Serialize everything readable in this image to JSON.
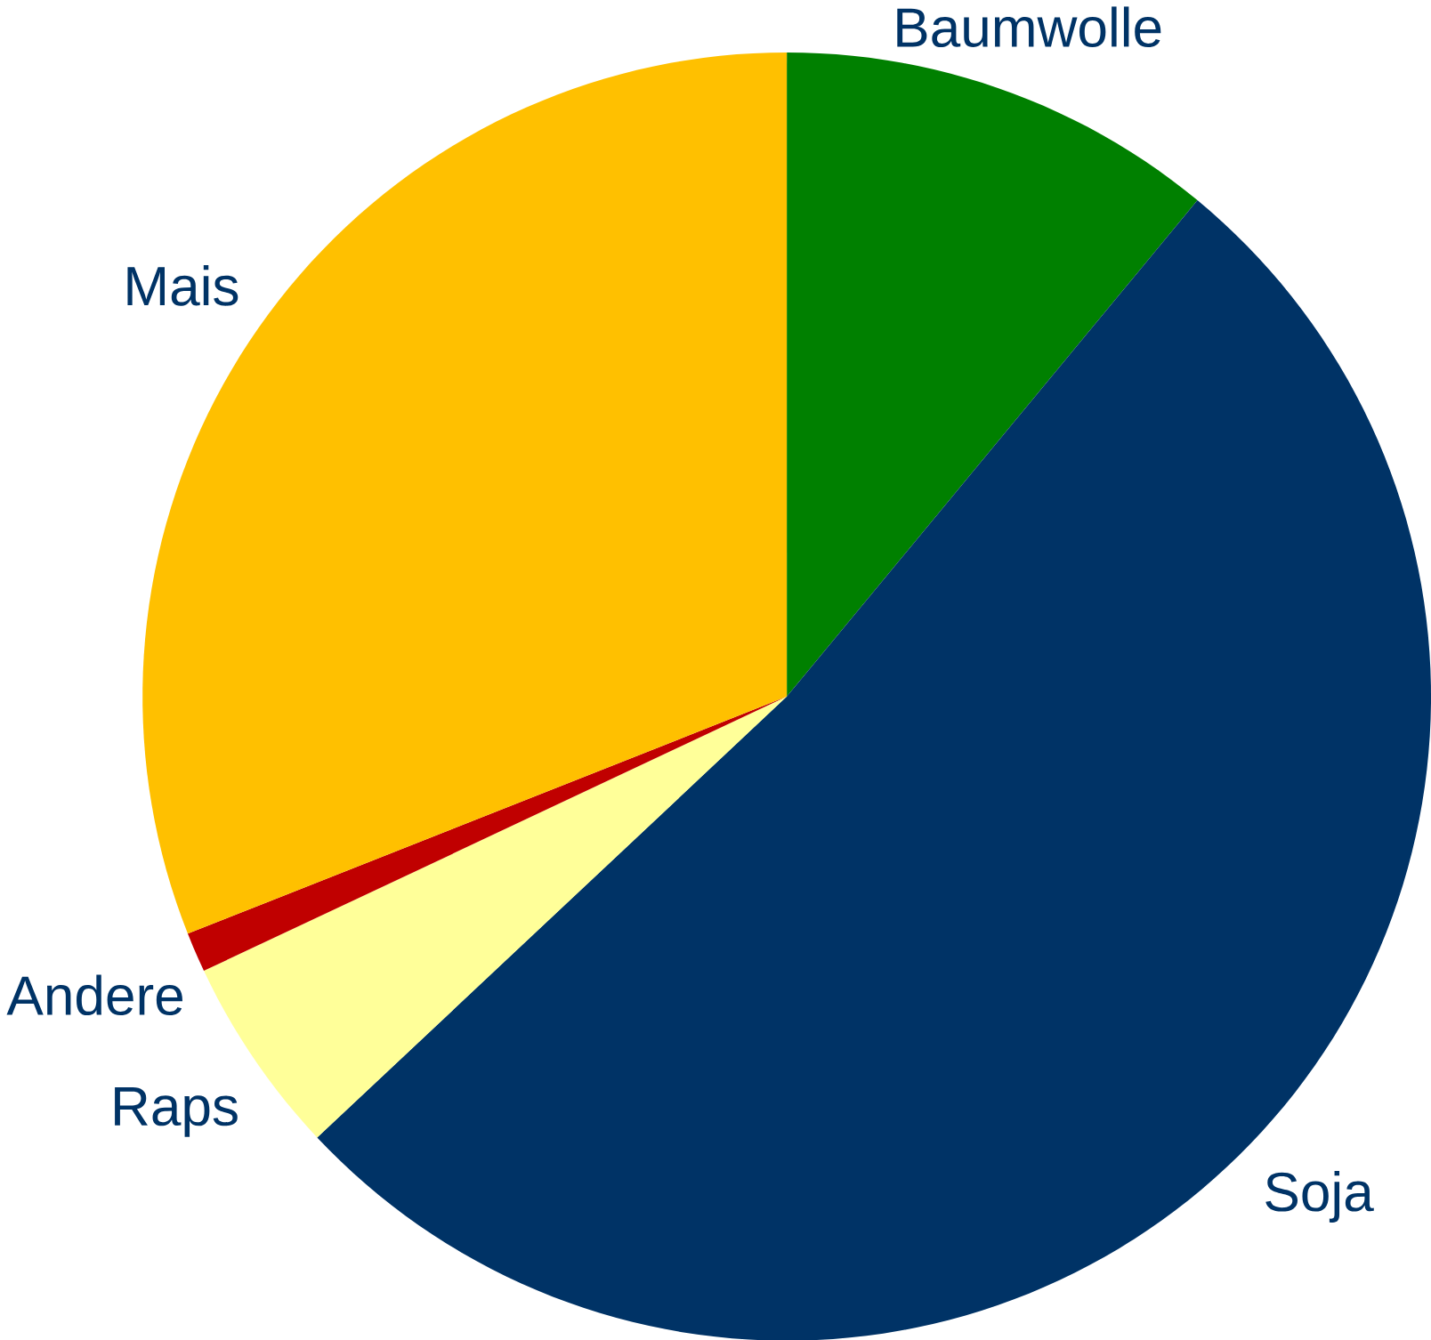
{
  "chart_data": {
    "type": "pie",
    "categories": [
      "Baumwolle",
      "Soja",
      "Raps",
      "Andere",
      "Mais"
    ],
    "values": [
      11,
      52,
      5,
      1,
      31
    ],
    "colors": [
      "#008000",
      "#003366",
      "#ffff99",
      "#c00000",
      "#ffc000"
    ]
  }
}
